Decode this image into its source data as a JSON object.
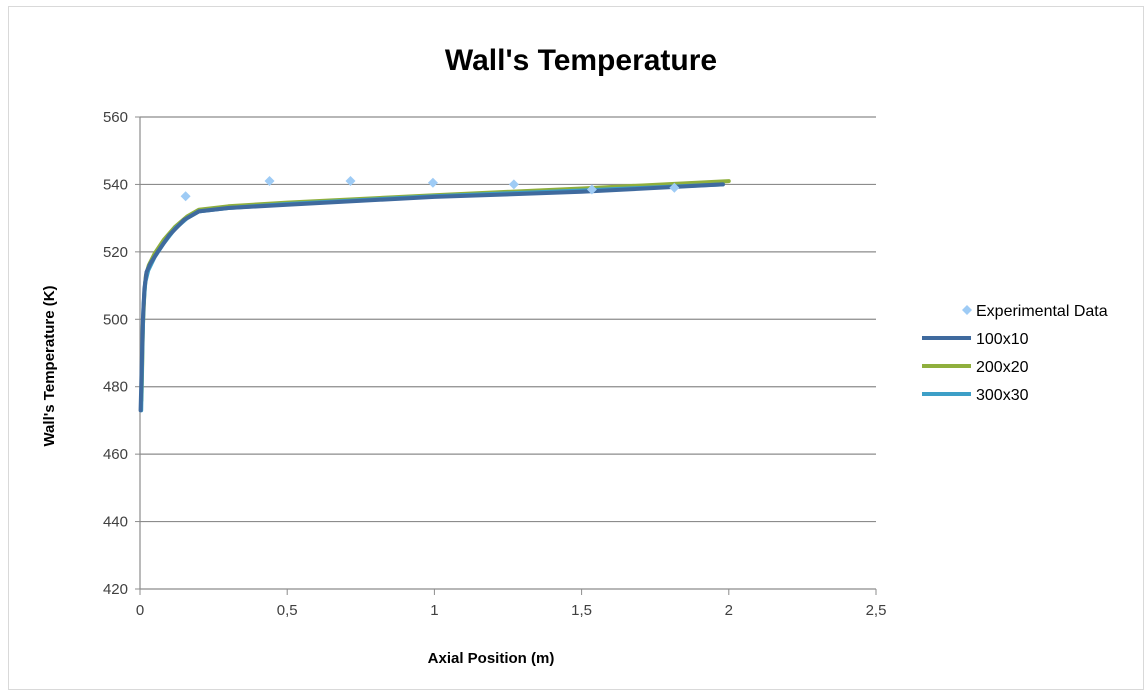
{
  "chart_data": {
    "type": "line",
    "title": "Wall's Temperature",
    "xlabel": "Axial Position (m)",
    "ylabel": "Wall's Temperature (K)",
    "xlim": [
      0,
      2.5
    ],
    "ylim": [
      420,
      560
    ],
    "xticks": [
      0,
      0.5,
      1,
      1.5,
      2,
      2.5
    ],
    "xtick_labels": [
      "0",
      "0,5",
      "1",
      "1,5",
      "2",
      "2,5"
    ],
    "yticks": [
      420,
      440,
      460,
      480,
      500,
      520,
      540,
      560
    ],
    "ytick_labels": [
      "420",
      "440",
      "460",
      "480",
      "500",
      "520",
      "540",
      "560"
    ],
    "grid": "horizontal",
    "legend": "right",
    "series": [
      {
        "name": "Experimental Data",
        "kind": "scatter",
        "color": "#9ecbf5",
        "x": [
          0.155,
          0.44,
          0.715,
          0.995,
          1.27,
          1.535,
          1.815
        ],
        "y": [
          536.5,
          541,
          541,
          540.5,
          540,
          538.5,
          539
        ]
      },
      {
        "name": "200x20",
        "kind": "line",
        "color": "#8faf3d",
        "x": [
          0.005,
          0.01,
          0.015,
          0.02,
          0.03,
          0.05,
          0.08,
          0.12,
          0.16,
          0.2,
          0.3,
          0.5,
          1.0,
          1.5,
          2.0
        ],
        "y": [
          476,
          498,
          508,
          513,
          516,
          519.5,
          523.5,
          527.5,
          530.5,
          532.5,
          533.5,
          534.6,
          536.8,
          538.8,
          541
        ]
      },
      {
        "name": "300x30",
        "kind": "line",
        "color": "#3d9fc7",
        "x": [
          0.004,
          0.008,
          0.012,
          0.018,
          0.028,
          0.05,
          0.08,
          0.12,
          0.16,
          0.2,
          0.3,
          0.5,
          1.0,
          1.5,
          1.98
        ],
        "y": [
          473,
          492,
          504,
          511,
          514.5,
          518.5,
          522.5,
          527,
          530,
          532,
          533,
          534.2,
          536.5,
          538.2,
          540
        ]
      },
      {
        "name": "100x10",
        "kind": "line",
        "color": "#3f6a9e",
        "x": [
          0.002,
          0.006,
          0.01,
          0.015,
          0.022,
          0.035,
          0.06,
          0.1,
          0.15,
          0.2,
          0.3,
          0.5,
          1.0,
          1.5,
          1.98
        ],
        "y": [
          473,
          487,
          500,
          509,
          514,
          516.5,
          520,
          525,
          529.5,
          532,
          533,
          534,
          536.3,
          537.8,
          540
        ]
      }
    ],
    "legend_entries": [
      {
        "name": "Experimental Data",
        "kind": "marker",
        "color": "#9ecbf5"
      },
      {
        "name": "100x10",
        "kind": "line",
        "color": "#3f6a9e"
      },
      {
        "name": "200x20",
        "kind": "line",
        "color": "#8faf3d"
      },
      {
        "name": "300x30",
        "kind": "line",
        "color": "#3d9fc7"
      }
    ]
  }
}
